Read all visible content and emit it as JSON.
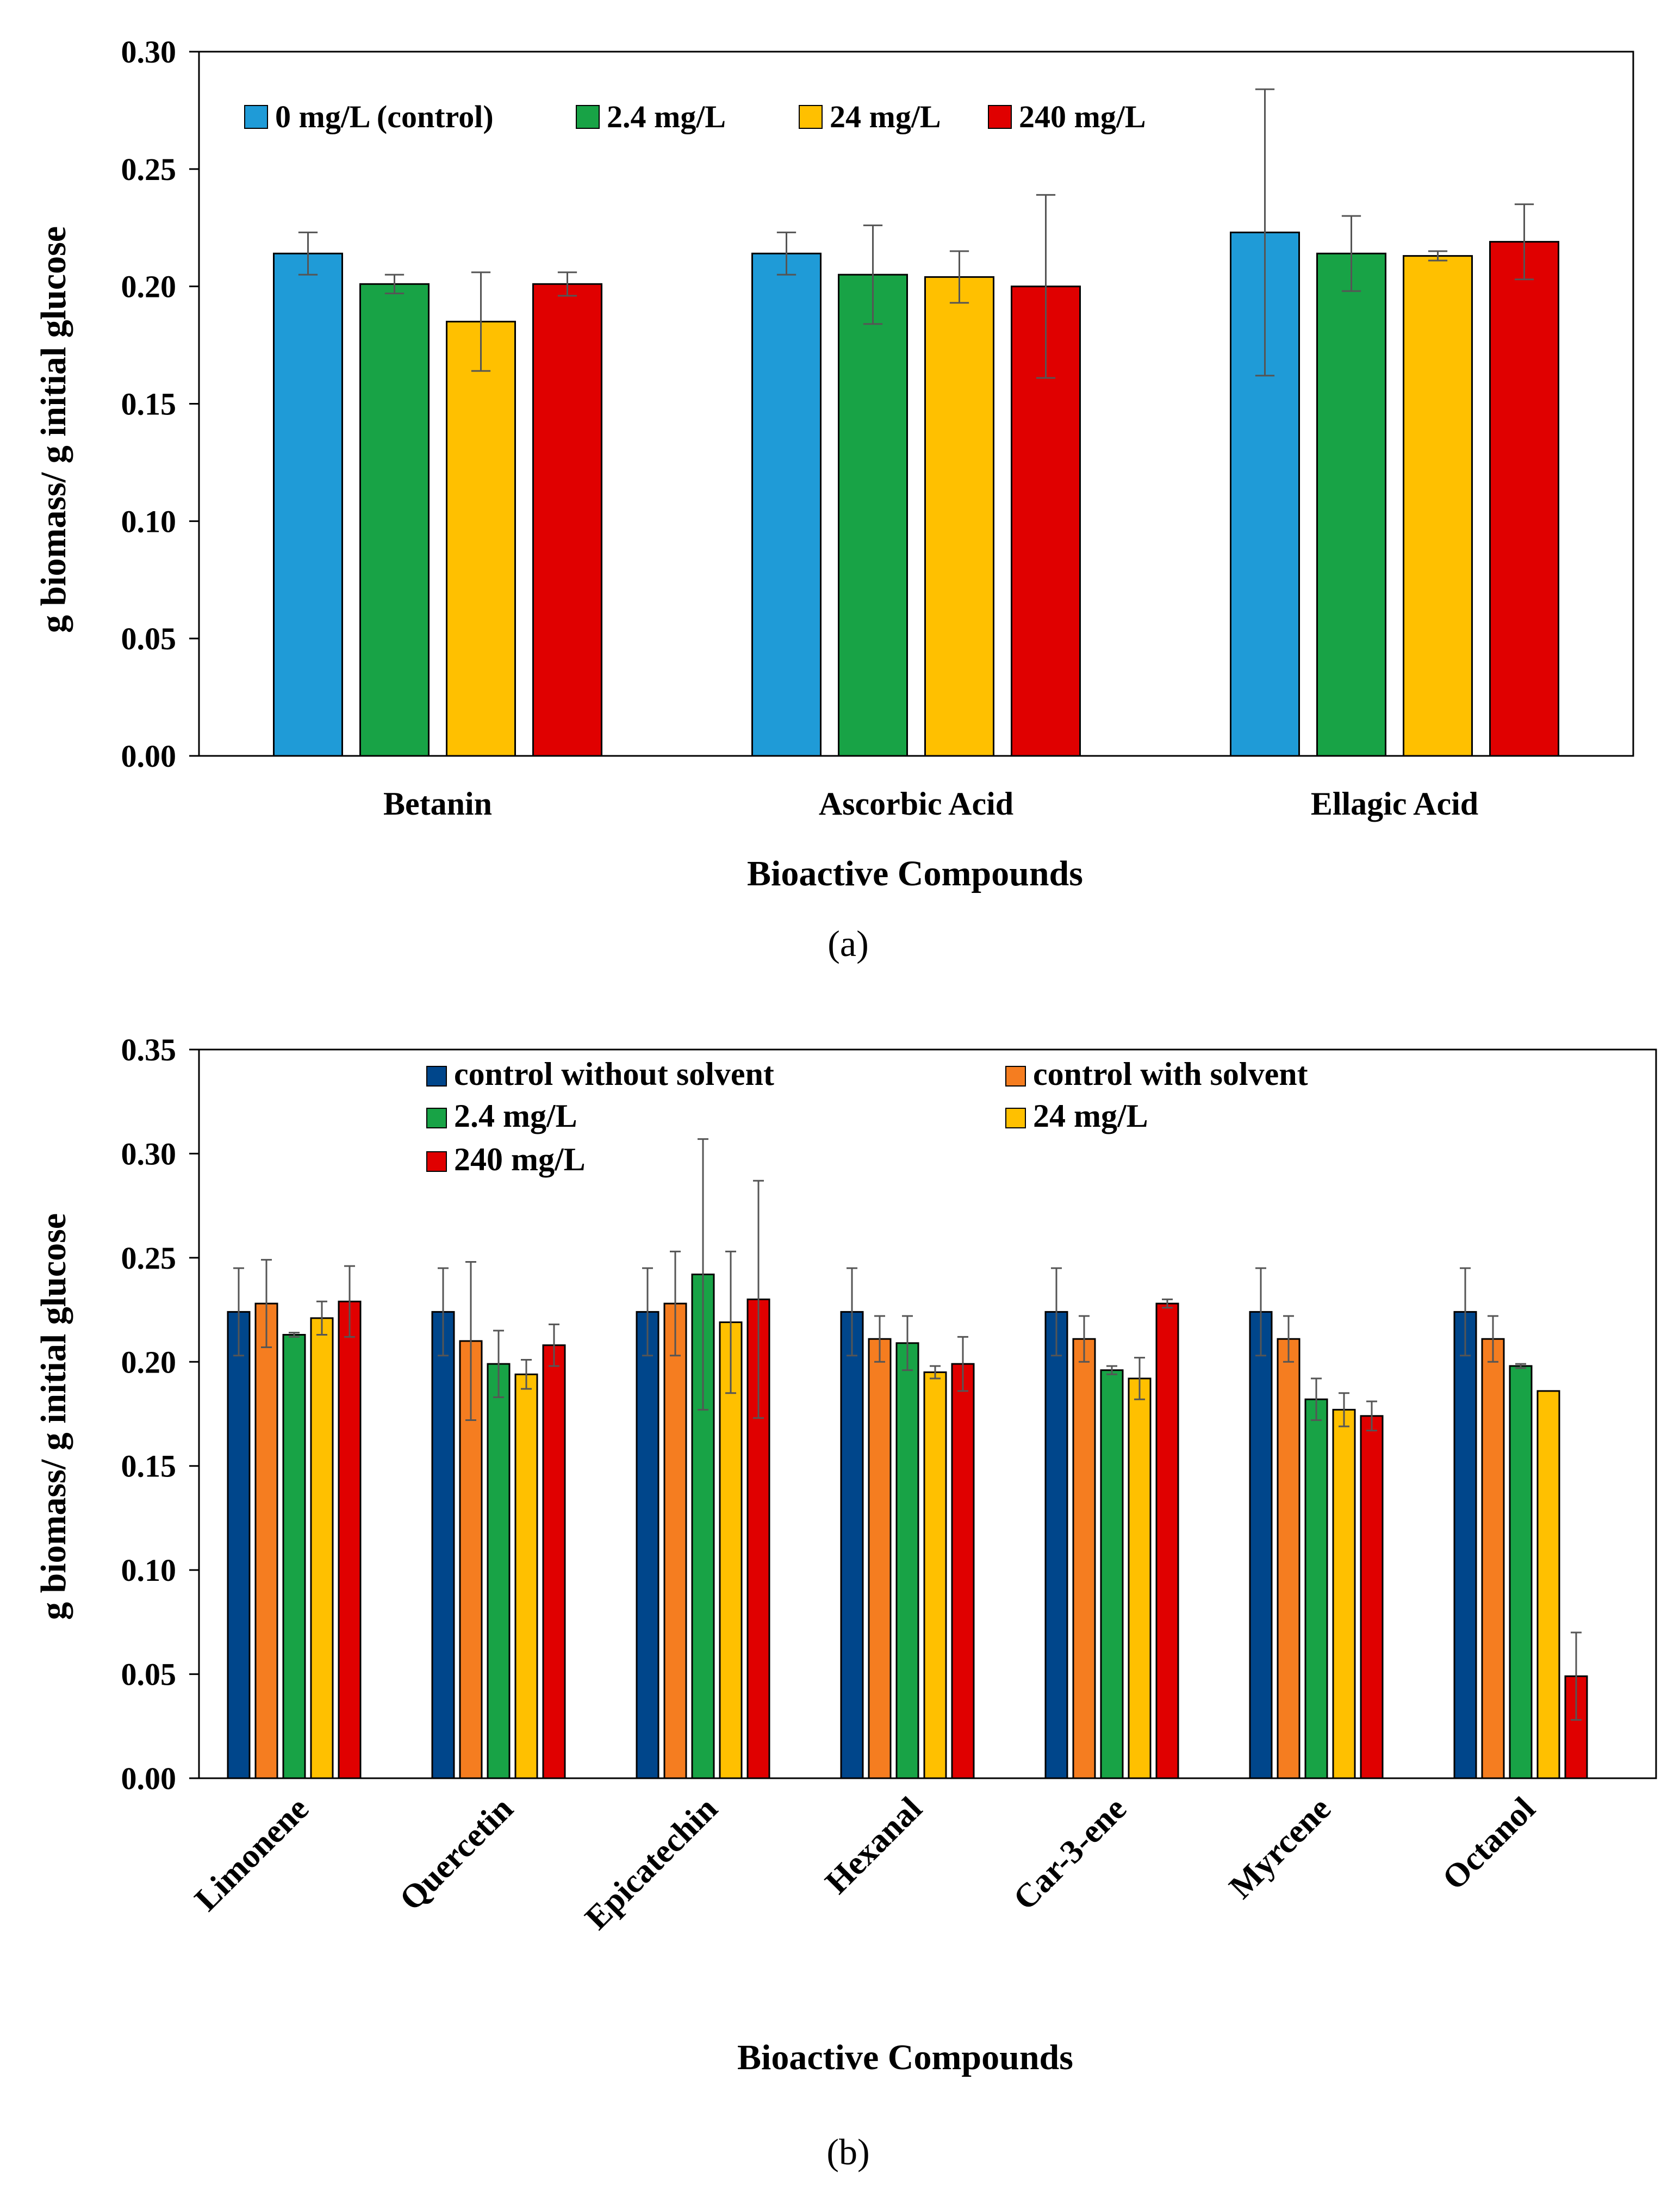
{
  "chart_data": [
    {
      "type": "bar",
      "panel_label": "(a)",
      "xlabel": "Bioactive Compounds",
      "ylabel": "g biomass/ g initial glucose",
      "ylim": [
        0,
        0.3
      ],
      "yticks": [
        "0.00",
        "0.05",
        "0.10",
        "0.15",
        "0.20",
        "0.25",
        "0.30"
      ],
      "grid": false,
      "legend_position": "top-left",
      "categories": [
        "Betanin",
        "Ascorbic Acid",
        "Ellagic Acid"
      ],
      "series": [
        {
          "name": "0 mg/L (control)",
          "color": "#1f9bd7",
          "values": [
            0.214,
            0.214,
            0.223
          ],
          "errors": [
            0.009,
            0.009,
            0.061
          ]
        },
        {
          "name": "2.4 mg/L",
          "color": "#18a346",
          "values": [
            0.201,
            0.205,
            0.214
          ],
          "errors": [
            0.004,
            0.021,
            0.016
          ]
        },
        {
          "name": "24 mg/L",
          "color": "#ffc000",
          "values": [
            0.185,
            0.204,
            0.213
          ],
          "errors": [
            0.021,
            0.011,
            0.002
          ]
        },
        {
          "name": "240 mg/L",
          "color": "#e00000",
          "values": [
            0.201,
            0.2,
            0.219
          ],
          "errors": [
            0.005,
            0.039,
            0.016
          ]
        }
      ]
    },
    {
      "type": "bar",
      "panel_label": "(b)",
      "xlabel": "Bioactive Compounds",
      "ylabel": "g biomass/ g initial glucose",
      "ylim": [
        0,
        0.35
      ],
      "yticks": [
        "0.00",
        "0.05",
        "0.10",
        "0.15",
        "0.20",
        "0.25",
        "0.30",
        "0.35"
      ],
      "grid": false,
      "legend_position": "top-center",
      "categories": [
        "Limonene",
        "Quercetin",
        "Epicatechin",
        "Hexanal",
        "Car-3-ene",
        "Myrcene",
        "Octanol"
      ],
      "series": [
        {
          "name": "control without solvent",
          "color": "#00468b",
          "values": [
            0.224,
            0.224,
            0.224,
            0.224,
            0.224,
            0.224,
            0.224
          ],
          "errors": [
            0.021,
            0.021,
            0.021,
            0.021,
            0.021,
            0.021,
            0.021
          ]
        },
        {
          "name": "control with solvent",
          "color": "#f57d20",
          "values": [
            0.228,
            0.21,
            0.228,
            0.211,
            0.211,
            0.211,
            0.211
          ],
          "errors": [
            0.021,
            0.038,
            0.025,
            0.011,
            0.011,
            0.011,
            0.011
          ]
        },
        {
          "name": "2.4 mg/L",
          "color": "#18a346",
          "values": [
            0.213,
            0.199,
            0.242,
            0.209,
            0.196,
            0.182,
            0.198
          ],
          "errors": [
            0.001,
            0.016,
            0.065,
            0.013,
            0.002,
            0.01,
            0.001
          ]
        },
        {
          "name": "24 mg/L",
          "color": "#ffc000",
          "values": [
            0.221,
            0.194,
            0.219,
            0.195,
            0.192,
            0.177,
            0.186
          ],
          "errors": [
            0.008,
            0.007,
            0.034,
            0.003,
            0.01,
            0.008,
            0.0
          ]
        },
        {
          "name": "240 mg/L",
          "color": "#e00000",
          "values": [
            0.229,
            0.208,
            0.23,
            0.199,
            0.228,
            0.174,
            0.049
          ],
          "errors": [
            0.017,
            0.01,
            0.057,
            0.013,
            0.002,
            0.007,
            0.021
          ]
        }
      ]
    }
  ]
}
